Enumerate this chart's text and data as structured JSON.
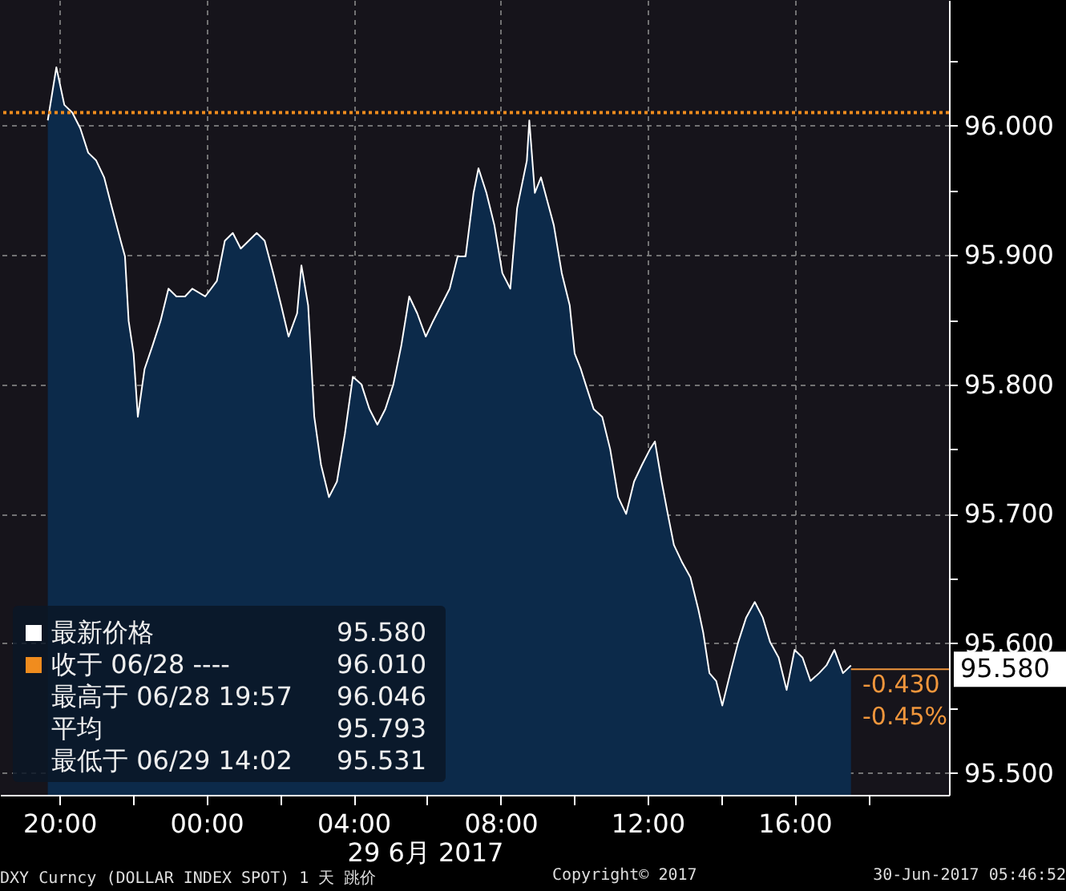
{
  "chart_data": {
    "type": "area",
    "xlabel": "29 6月 2017",
    "x": [
      "2017-06-28T19:41",
      "2017-06-28T19:55",
      "2017-06-28T20:08",
      "2017-06-28T20:21",
      "2017-06-28T20:34",
      "2017-06-28T20:47",
      "2017-06-28T21:00",
      "2017-06-28T21:13",
      "2017-06-28T21:26",
      "2017-06-28T21:40",
      "2017-06-28T21:47",
      "2017-06-28T21:53",
      "2017-06-28T22:01",
      "2017-06-28T22:08",
      "2017-06-28T22:19",
      "2017-06-28T22:32",
      "2017-06-28T22:45",
      "2017-06-28T22:58",
      "2017-06-28T23:11",
      "2017-06-28T23:25",
      "2017-06-28T23:37",
      "2017-06-28T23:58",
      "2017-06-29T00:17",
      "2017-06-29T00:30",
      "2017-06-29T00:43",
      "2017-06-29T00:56",
      "2017-06-29T01:09",
      "2017-06-29T01:22",
      "2017-06-29T01:35",
      "2017-06-29T01:49",
      "2017-06-29T02:02",
      "2017-06-29T02:14",
      "2017-06-29T02:28",
      "2017-06-29T02:35",
      "2017-06-29T02:46",
      "2017-06-29T02:56",
      "2017-06-29T03:07",
      "2017-06-29T03:20",
      "2017-06-29T03:33",
      "2017-06-29T03:46",
      "2017-06-29T03:59",
      "2017-06-29T04:13",
      "2017-06-29T04:26",
      "2017-06-29T04:39",
      "2017-06-29T04:52",
      "2017-06-29T05:05",
      "2017-06-29T05:18",
      "2017-06-29T05:31",
      "2017-06-29T05:44",
      "2017-06-29T05:58",
      "2017-06-29T06:10",
      "2017-06-29T06:23",
      "2017-06-29T06:37",
      "2017-06-29T06:50",
      "2017-06-29T07:03",
      "2017-06-29T07:16",
      "2017-06-29T07:24",
      "2017-06-29T07:37",
      "2017-06-29T07:50",
      "2017-06-29T08:03",
      "2017-06-29T08:16",
      "2017-06-29T08:27",
      "2017-06-29T08:43",
      "2017-06-29T08:47",
      "2017-06-29T08:56",
      "2017-06-29T09:06",
      "2017-06-29T09:27",
      "2017-06-29T09:40",
      "2017-06-29T09:53",
      "2017-06-29T10:01",
      "2017-06-29T10:11",
      "2017-06-29T10:19",
      "2017-06-29T10:32",
      "2017-06-29T10:46",
      "2017-06-29T10:59",
      "2017-06-29T11:12",
      "2017-06-29T11:25",
      "2017-06-29T11:38",
      "2017-06-29T11:51",
      "2017-06-29T12:04",
      "2017-06-29T12:12",
      "2017-06-29T12:23",
      "2017-06-29T12:33",
      "2017-06-29T12:43",
      "2017-06-29T12:56",
      "2017-06-29T13:10",
      "2017-06-29T13:23",
      "2017-06-29T13:31",
      "2017-06-29T13:41",
      "2017-06-29T13:52",
      "2017-06-29T14:02",
      "2017-06-29T14:15",
      "2017-06-29T14:28",
      "2017-06-29T14:41",
      "2017-06-29T14:55",
      "2017-06-29T15:08",
      "2017-06-29T15:20",
      "2017-06-29T15:34",
      "2017-06-29T15:47",
      "2017-06-29T16:00",
      "2017-06-29T16:13",
      "2017-06-29T16:26",
      "2017-06-29T16:40",
      "2017-06-29T16:52",
      "2017-06-29T17:05",
      "2017-06-29T17:19",
      "2017-06-29T17:32"
    ],
    "series": [
      {
        "color": "#0c2a4a",
        "values": [
          96.004,
          96.045,
          96.016,
          96.01,
          95.998,
          95.979,
          95.973,
          95.96,
          95.936,
          95.911,
          95.899,
          95.849,
          95.824,
          95.775,
          95.812,
          95.83,
          95.849,
          95.874,
          95.868,
          95.868,
          95.874,
          95.868,
          95.88,
          95.911,
          95.917,
          95.905,
          95.911,
          95.917,
          95.911,
          95.886,
          95.861,
          95.837,
          95.855,
          95.892,
          95.861,
          95.775,
          95.738,
          95.713,
          95.725,
          95.762,
          95.806,
          95.8,
          95.781,
          95.769,
          95.781,
          95.8,
          95.83,
          95.868,
          95.855,
          95.837,
          95.849,
          95.861,
          95.874,
          95.899,
          95.899,
          95.948,
          95.967,
          95.948,
          95.923,
          95.886,
          95.874,
          95.936,
          95.973,
          96.004,
          95.948,
          95.96,
          95.923,
          95.886,
          95.861,
          95.824,
          95.812,
          95.8,
          95.781,
          95.775,
          95.75,
          95.713,
          95.7,
          95.725,
          95.738,
          95.75,
          95.756,
          95.725,
          95.7,
          95.676,
          95.663,
          95.651,
          95.626,
          95.608,
          95.577,
          95.571,
          95.552,
          95.577,
          95.601,
          95.62,
          95.632,
          95.62,
          95.601,
          95.589,
          95.564,
          95.595,
          95.589,
          95.571,
          95.577,
          95.583,
          95.595,
          95.577,
          95.583
        ]
      }
    ],
    "xlim": [
      "2017-06-28T18:23",
      "2017-06-29T20:12"
    ],
    "xticks": [
      {
        "value": "2017-06-28T20:00",
        "label": "20:00"
      },
      {
        "value": "2017-06-28T22:00",
        "label": null
      },
      {
        "value": "2017-06-29T00:00",
        "label": "00:00"
      },
      {
        "value": "2017-06-29T02:00",
        "label": null
      },
      {
        "value": "2017-06-29T04:00",
        "label": "04:00"
      },
      {
        "value": "2017-06-29T06:00",
        "label": null
      },
      {
        "value": "2017-06-29T08:00",
        "label": "08:00"
      },
      {
        "value": "2017-06-29T10:00",
        "label": null
      },
      {
        "value": "2017-06-29T12:00",
        "label": "12:00"
      },
      {
        "value": "2017-06-29T14:00",
        "label": null
      },
      {
        "value": "2017-06-29T16:00",
        "label": "16:00"
      },
      {
        "value": "2017-06-29T18:00",
        "label": null
      }
    ],
    "ylim": [
      95.483,
      96.097
    ],
    "yticks": [
      {
        "value": 95.5,
        "label": "95.500"
      },
      {
        "value": 95.55,
        "label": null
      },
      {
        "value": 95.6,
        "label": "95.600"
      },
      {
        "value": 95.65,
        "label": null
      },
      {
        "value": 95.7,
        "label": "95.700"
      },
      {
        "value": 95.75,
        "label": null
      },
      {
        "value": 95.8,
        "label": "95.800"
      },
      {
        "value": 95.85,
        "label": null
      },
      {
        "value": 95.9,
        "label": "95.900"
      },
      {
        "value": 95.95,
        "label": null
      },
      {
        "value": 96.0,
        "label": "96.000"
      },
      {
        "value": 96.05,
        "label": null
      }
    ],
    "grid": true,
    "line_style": "solid",
    "ref_lines": [
      {
        "axis": "y",
        "value": 96.01,
        "color": "#f08c1e",
        "line_style": "dotted"
      }
    ],
    "annotations": [
      "最新价格",
      "95.580",
      "收于 06/28 ----",
      "96.010",
      "最高于 06/28 19:57",
      "96.046",
      "平均",
      "95.793",
      "最低于 06/29 14:02",
      "95.531",
      {
        "text": "95.580",
        "x": "2017-06-29T17:32",
        "y": 95.58
      },
      "-0.430",
      "-0.45%",
      "DXY Curncy (DOLLAR INDEX SPOT) 1 天  跳价",
      "Copyright© 2017",
      "30-Jun-2017 05:46:52"
    ]
  }
}
